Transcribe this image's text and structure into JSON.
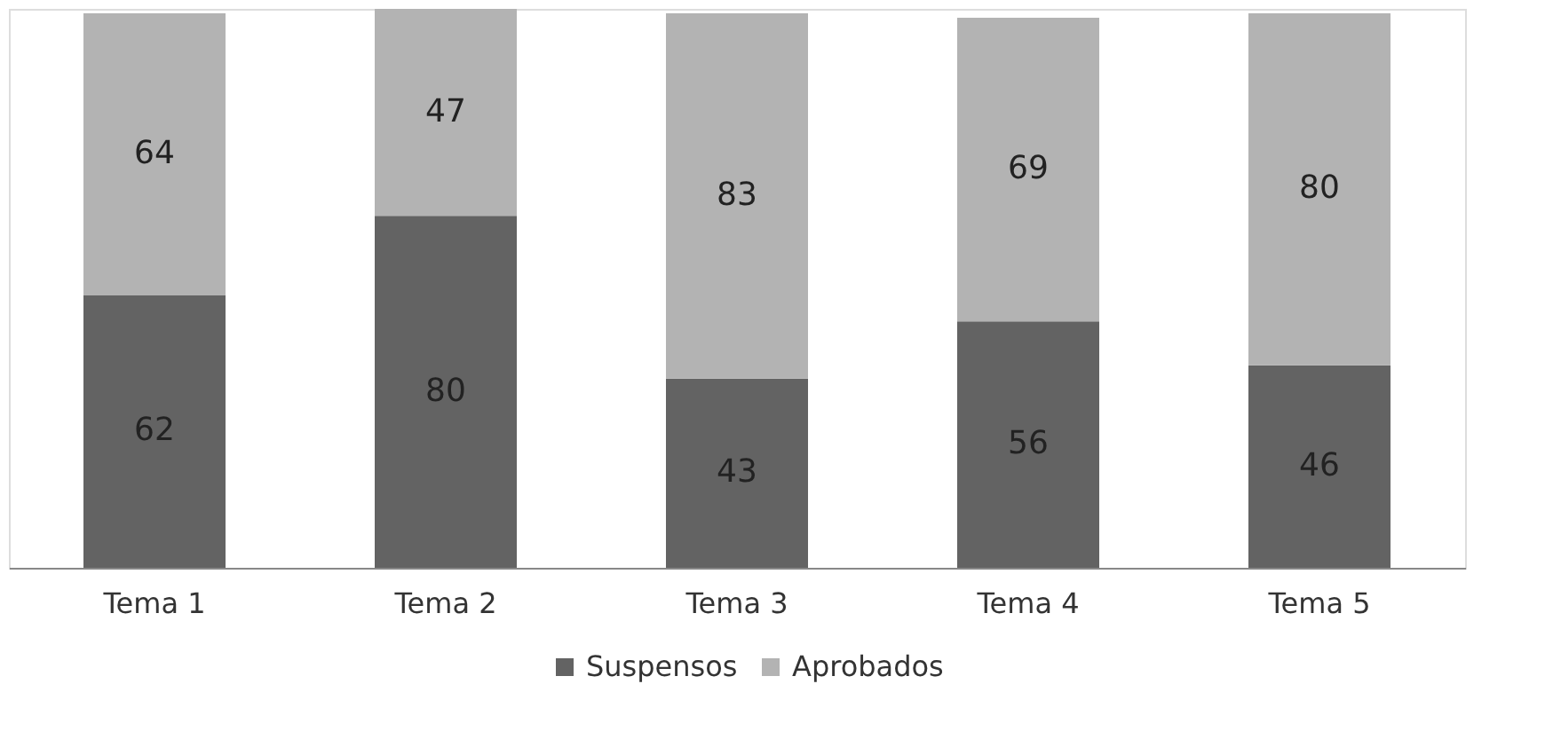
{
  "chart_data": {
    "type": "bar",
    "stacked": true,
    "data_labels": true,
    "legend": "bottom",
    "grid": false,
    "categories": [
      "Tema 1",
      "Tema 2",
      "Tema 3",
      "Tema 4",
      "Tema 5"
    ],
    "series": [
      {
        "name": "Suspensos",
        "color": "#636363",
        "values": [
          62,
          80,
          43,
          56,
          46
        ]
      },
      {
        "name": "Aprobados",
        "color": "#b3b3b3",
        "values": [
          64,
          47,
          83,
          69,
          80
        ]
      }
    ]
  }
}
